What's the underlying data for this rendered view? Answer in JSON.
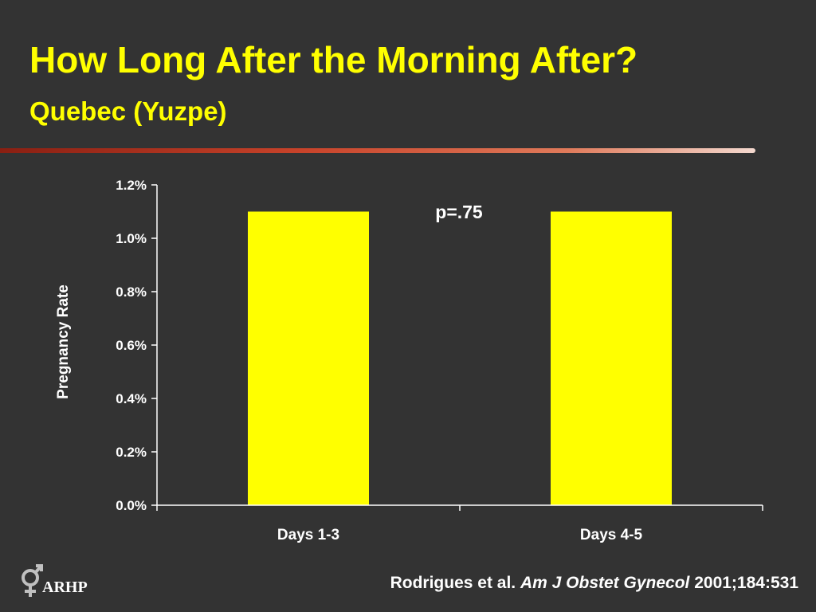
{
  "slide": {
    "title": "How Long After the Morning After?",
    "subtitle": "Quebec (Yuzpe)",
    "citation": {
      "authors": "Rodrigues et al.",
      "journal": "Am J Obstet Gynecol",
      "ref": "2001;184:531"
    },
    "logo": {
      "icon": "gender-symbol-icon",
      "text": "ARHP"
    }
  },
  "colors": {
    "background": "#333333",
    "title": "#ffff00",
    "bar": "#ffff00",
    "text": "#ffffff"
  },
  "chart_data": {
    "type": "bar",
    "categories": [
      "Days 1-3",
      "Days 4-5"
    ],
    "values": [
      1.1,
      1.1
    ],
    "unit": "%",
    "title": "",
    "xlabel": "",
    "ylabel": "Pregnancy Rate",
    "ylim": [
      0,
      1.2
    ],
    "yticks": [
      "0.0%",
      "0.2%",
      "0.4%",
      "0.6%",
      "0.8%",
      "1.0%",
      "1.2%"
    ],
    "annotation": "p=.75",
    "grid": false,
    "legend": "none"
  }
}
